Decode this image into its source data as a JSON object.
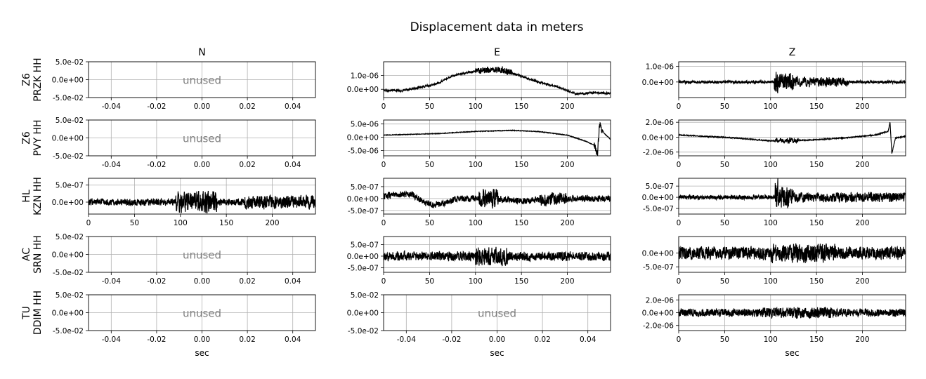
{
  "figure": {
    "title": "Displacement data in meters",
    "columns": [
      "N",
      "E",
      "Z"
    ],
    "rows": [
      {
        "net": "Z6",
        "sta": "PRZK HH"
      },
      {
        "net": "Z6",
        "sta": "PVY HH"
      },
      {
        "net": "HL",
        "sta": "KZN HH"
      },
      {
        "net": "AC",
        "sta": "SRN HH"
      },
      {
        "net": "TU",
        "sta": "DDIM HH"
      }
    ],
    "xlabel": "sec",
    "unused_label": "unused",
    "line_color": "#000000",
    "grid_color": "#b0b0b0",
    "unused_color": "#808080"
  },
  "chart_data": [
    {
      "row": 0,
      "col": 0,
      "type": "line",
      "unused": true,
      "xlim": [
        -0.05,
        0.05
      ],
      "ylim": [
        -0.05,
        0.05
      ],
      "xticks": [
        "-0.04",
        "-0.02",
        "0.00",
        "0.02",
        "0.04"
      ],
      "yticks": [
        "5.0e-02",
        "0.0e+00",
        "-5.0e-02"
      ],
      "xlabel": ""
    },
    {
      "row": 0,
      "col": 1,
      "type": "line",
      "unused": false,
      "xlim": [
        0,
        247
      ],
      "ylim": [
        -6e-07,
        2e-06
      ],
      "xticks": [
        "0",
        "50",
        "100",
        "150",
        "200"
      ],
      "yticks": [
        "1.0e-06",
        "0.0e+00"
      ],
      "xlabel": "",
      "envelope": [
        [
          0,
          -1e-07
        ],
        [
          20,
          -1e-07
        ],
        [
          40,
          1.5e-07
        ],
        [
          60,
          4.5e-07
        ],
        [
          70,
          8.5e-07
        ],
        [
          80,
          1.05e-06
        ],
        [
          100,
          1.3e-06
        ],
        [
          120,
          1.45e-06
        ],
        [
          130,
          1.4e-06
        ],
        [
          150,
          9.5e-07
        ],
        [
          170,
          5e-07
        ],
        [
          190,
          1.5e-07
        ],
        [
          210,
          -3.5e-07
        ],
        [
          225,
          -2.5e-07
        ],
        [
          247,
          -3e-07
        ]
      ],
      "noise": 9e-08,
      "bursts": [
        [
          100,
          140,
          2e-07
        ]
      ]
    },
    {
      "row": 0,
      "col": 2,
      "type": "line",
      "unused": false,
      "xlim": [
        0,
        247
      ],
      "ylim": [
        -1e-06,
        1.3e-06
      ],
      "xticks": [
        "0",
        "50",
        "100",
        "150",
        "200"
      ],
      "yticks": [
        "1.0e-06",
        "0.0e+00"
      ],
      "xlabel": "",
      "envelope": [
        [
          0,
          0
        ],
        [
          247,
          0
        ]
      ],
      "noise": 1.1e-07,
      "bursts": [
        [
          104,
          108,
          9e-07
        ],
        [
          108,
          125,
          5.5e-07
        ],
        [
          125,
          185,
          2.5e-07
        ]
      ]
    },
    {
      "row": 1,
      "col": 0,
      "type": "line",
      "unused": true,
      "xlim": [
        -0.05,
        0.05
      ],
      "ylim": [
        -0.05,
        0.05
      ],
      "xticks": [
        "-0.04",
        "-0.02",
        "0.00",
        "0.02",
        "0.04"
      ],
      "yticks": [
        "5.0e-02",
        "0.0e+00",
        "-5.0e-02"
      ],
      "xlabel": ""
    },
    {
      "row": 1,
      "col": 1,
      "type": "line",
      "unused": false,
      "xlim": [
        0,
        247
      ],
      "ylim": [
        -7e-06,
        6.5e-06
      ],
      "xticks": [
        "0",
        "50",
        "100",
        "150",
        "200"
      ],
      "yticks": [
        "5.0e-06",
        "0.0e+00",
        "-5.0e-06"
      ],
      "xlabel": "",
      "envelope": [
        [
          0,
          8e-07
        ],
        [
          30,
          1.1e-06
        ],
        [
          60,
          1.4e-06
        ],
        [
          100,
          2.2e-06
        ],
        [
          140,
          2.6e-06
        ],
        [
          170,
          2.1e-06
        ],
        [
          200,
          8e-07
        ],
        [
          220,
          -1.5e-06
        ],
        [
          229,
          -3e-06
        ],
        [
          233,
          -6e-06
        ],
        [
          235,
          5e-06
        ],
        [
          240,
          1.5e-06
        ],
        [
          247,
          -8e-07
        ]
      ],
      "noise": 1.5e-07,
      "bursts": [
        [
          229,
          238,
          1.8e-06
        ]
      ]
    },
    {
      "row": 1,
      "col": 2,
      "type": "line",
      "unused": false,
      "xlim": [
        0,
        247
      ],
      "ylim": [
        -2.5e-06,
        2.3e-06
      ],
      "xticks": [
        "0",
        "50",
        "100",
        "150",
        "200"
      ],
      "yticks": [
        "2.0e-06",
        "0.0e+00",
        "-2.0e-06"
      ],
      "xlabel": "",
      "envelope": [
        [
          0,
          3e-07
        ],
        [
          30,
          1e-07
        ],
        [
          60,
          -1e-07
        ],
        [
          100,
          -5e-07
        ],
        [
          140,
          -4e-07
        ],
        [
          180,
          -1e-07
        ],
        [
          215,
          3e-07
        ],
        [
          228,
          8e-07
        ],
        [
          230,
          2e-06
        ],
        [
          232,
          -2.2e-06
        ],
        [
          236,
          -1e-07
        ],
        [
          247,
          1e-07
        ]
      ],
      "noise": 8e-08,
      "bursts": [
        [
          105,
          130,
          3e-07
        ]
      ]
    },
    {
      "row": 2,
      "col": 0,
      "type": "line",
      "unused": false,
      "xlim": [
        0,
        247
      ],
      "ylim": [
        -3.5e-07,
        7e-07
      ],
      "xticks": [
        "0",
        "50",
        "100",
        "150",
        "200"
      ],
      "yticks": [
        "5.0e-07",
        "0.0e+00"
      ],
      "xlabel": "",
      "envelope": [
        [
          0,
          0
        ],
        [
          247,
          0
        ]
      ],
      "noise": 1.2e-07,
      "bursts": [
        [
          95,
          140,
          2.5e-07
        ],
        [
          170,
          247,
          1.2e-07
        ]
      ]
    },
    {
      "row": 2,
      "col": 1,
      "type": "line",
      "unused": false,
      "xlim": [
        0,
        247
      ],
      "ylim": [
        -6.5e-07,
        8.5e-07
      ],
      "xticks": [
        "0",
        "50",
        "100",
        "150",
        "200"
      ],
      "yticks": [
        "5.0e-07",
        "0.0e+00",
        "-5.0e-07"
      ],
      "xlabel": "",
      "envelope": [
        [
          0,
          1e-07
        ],
        [
          30,
          2e-07
        ],
        [
          45,
          -2e-07
        ],
        [
          60,
          -2.5e-07
        ],
        [
          80,
          0
        ],
        [
          120,
          0
        ],
        [
          150,
          -1e-07
        ],
        [
          200,
          0
        ],
        [
          247,
          0
        ]
      ],
      "noise": 1.6e-07,
      "bursts": [
        [
          103,
          125,
          3e-07
        ],
        [
          170,
          200,
          1.5e-07
        ]
      ]
    },
    {
      "row": 2,
      "col": 2,
      "type": "line",
      "unused": false,
      "xlim": [
        0,
        247
      ],
      "ylim": [
        -7.5e-07,
        8.5e-07
      ],
      "xticks": [
        "0",
        "50",
        "100",
        "150",
        "200"
      ],
      "yticks": [
        "5.0e-07",
        "0.0e+00",
        "-5.0e-07"
      ],
      "xlabel": "",
      "envelope": [
        [
          0,
          0
        ],
        [
          247,
          0
        ]
      ],
      "noise": 1.2e-07,
      "bursts": [
        [
          105,
          108,
          8e-07
        ],
        [
          108,
          125,
          4.5e-07
        ],
        [
          125,
          247,
          1.4e-07
        ]
      ]
    },
    {
      "row": 3,
      "col": 0,
      "type": "line",
      "unused": true,
      "xlim": [
        -0.05,
        0.05
      ],
      "ylim": [
        -0.05,
        0.05
      ],
      "xticks": [
        "-0.04",
        "-0.02",
        "0.00",
        "0.02",
        "0.04"
      ],
      "yticks": [
        "5.0e-02",
        "0.0e+00",
        "-5.0e-02"
      ],
      "xlabel": ""
    },
    {
      "row": 3,
      "col": 1,
      "type": "line",
      "unused": false,
      "xlim": [
        0,
        247
      ],
      "ylim": [
        -7e-07,
        8.5e-07
      ],
      "xticks": [
        "0",
        "50",
        "100",
        "150",
        "200"
      ],
      "yticks": [
        "5.0e-07",
        "0.0e+00",
        "-5.0e-07"
      ],
      "xlabel": "",
      "envelope": [
        [
          0,
          0
        ],
        [
          247,
          0
        ]
      ],
      "noise": 2.4e-07,
      "bursts": [
        [
          100,
          135,
          2.2e-07
        ]
      ]
    },
    {
      "row": 3,
      "col": 2,
      "type": "line",
      "unused": false,
      "xlim": [
        0,
        247
      ],
      "ylim": [
        -7e-07,
        6e-07
      ],
      "xticks": [
        "0",
        "50",
        "100",
        "150",
        "200"
      ],
      "yticks": [
        "0.0e+00",
        "-5.0e-07"
      ],
      "xlabel": "",
      "envelope": [
        [
          0,
          0
        ],
        [
          247,
          0
        ]
      ],
      "noise": 2.8e-07,
      "bursts": [
        [
          100,
          170,
          1.2e-07
        ]
      ]
    },
    {
      "row": 4,
      "col": 0,
      "type": "line",
      "unused": true,
      "xlim": [
        -0.05,
        0.05
      ],
      "ylim": [
        -0.05,
        0.05
      ],
      "xticks": [
        "-0.04",
        "-0.02",
        "0.00",
        "0.02",
        "0.04"
      ],
      "yticks": [
        "5.0e-02",
        "0.0e+00",
        "-5.0e-02"
      ],
      "xlabel": "sec"
    },
    {
      "row": 4,
      "col": 1,
      "type": "line",
      "unused": true,
      "xlim": [
        -0.05,
        0.05
      ],
      "ylim": [
        -0.05,
        0.05
      ],
      "xticks": [
        "-0.04",
        "-0.02",
        "0.00",
        "0.02",
        "0.04"
      ],
      "yticks": [
        "5.0e-02",
        "0.0e+00",
        "-5.0e-02"
      ],
      "xlabel": "sec"
    },
    {
      "row": 4,
      "col": 2,
      "type": "line",
      "unused": false,
      "xlim": [
        0,
        247
      ],
      "ylim": [
        -2.8e-06,
        2.8e-06
      ],
      "xticks": [
        "0",
        "50",
        "100",
        "150",
        "200"
      ],
      "yticks": [
        "2.0e-06",
        "0.0e+00",
        "-2.0e-06"
      ],
      "xlabel": "sec",
      "envelope": [
        [
          0,
          0
        ],
        [
          247,
          0
        ]
      ],
      "noise": 7.5e-07,
      "bursts": [
        [
          90,
          170,
          3e-07
        ]
      ]
    }
  ]
}
